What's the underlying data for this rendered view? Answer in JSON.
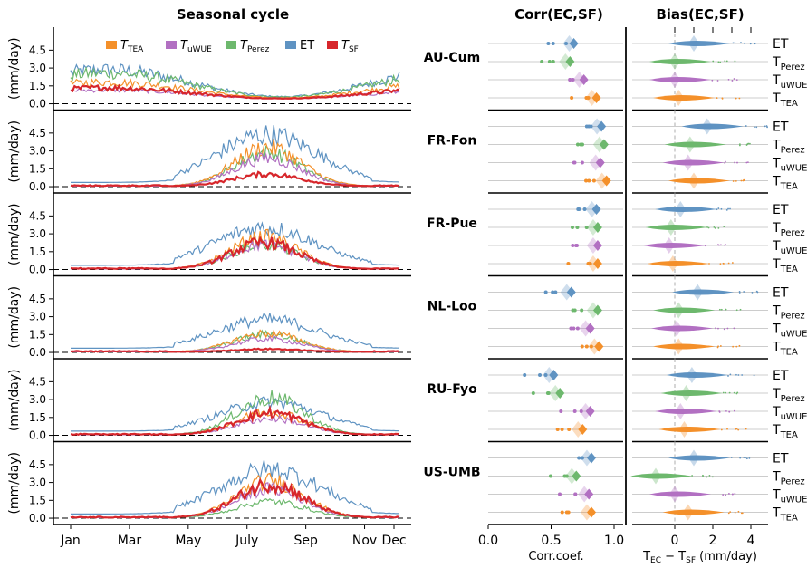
{
  "titles": {
    "seasonal": "Seasonal cycle",
    "corr": "Corr(EC,SF)",
    "bias": "Bias(EC,SF)"
  },
  "legend": [
    {
      "label": "T",
      "sub": "TEA",
      "color": "#f4902a"
    },
    {
      "label": "T",
      "sub": "uWUE",
      "color": "#b270c2"
    },
    {
      "label": "T",
      "sub": "Perez",
      "color": "#6db86d"
    },
    {
      "label": "ET",
      "sub": "",
      "color": "#5f93c2"
    },
    {
      "label": "T",
      "sub": "SF",
      "color": "#d7262b"
    }
  ],
  "ylabel": "(mm/day)",
  "yticks": [
    "0.0",
    "1.5",
    "3.0",
    "4.5"
  ],
  "months": [
    "Jan",
    "Mar",
    "May",
    "July",
    "Sep",
    "Nov",
    "Dec"
  ],
  "corr_xticks": [
    "0.0",
    "0.5",
    "1.0"
  ],
  "bias_xticks": [
    "0",
    "2",
    "4"
  ],
  "corr_xlabel": "Corr.coef.",
  "bias_xlabel_main": "T",
  "bias_xlabel_sub1": "EC",
  "bias_xlabel_mid": " − T",
  "bias_xlabel_sub2": "SF",
  "bias_xlabel_unit": " (mm/day)",
  "row_labels": [
    {
      "main": "ET",
      "sub": ""
    },
    {
      "main": "T",
      "sub": "Perez"
    },
    {
      "main": "T",
      "sub": "uWUE"
    },
    {
      "main": "T",
      "sub": "TEA"
    }
  ],
  "chart_data": {
    "type": "line",
    "title": "Seasonal cycle",
    "ylabel": "(mm/day)",
    "ylim": [
      -0.3,
      6.2
    ],
    "x_range": [
      "Jan",
      "Dec"
    ],
    "series_names": [
      "T_TEA",
      "T_uWUE",
      "T_Perez",
      "ET",
      "T_SF"
    ],
    "sites": [
      {
        "name": "AU-Cum",
        "peak_month": 2.0,
        "corr": {
          "ET": 0.68,
          "T_Perez": 0.65,
          "T_uWUE": 0.76,
          "T_TEA": 0.86
        },
        "bias": {
          "ET": 1.0,
          "T_Perez": 0.0,
          "T_uWUE": 0.0,
          "T_TEA": 0.2
        },
        "peaks": {
          "ET": 3.0,
          "T_TEA": 1.9,
          "T_uWUE": 1.2,
          "T_Perez": 2.7,
          "T_SF": 1.4
        }
      },
      {
        "name": "FR-Fon",
        "peak_month": 6.7,
        "corr": {
          "ET": 0.9,
          "T_Perez": 0.92,
          "T_uWUE": 0.89,
          "T_TEA": 0.94
        },
        "bias": {
          "ET": 1.7,
          "T_Perez": 0.8,
          "T_uWUE": 0.7,
          "T_TEA": 1.0
        },
        "peaks": {
          "ET": 4.6,
          "T_TEA": 3.5,
          "T_uWUE": 2.5,
          "T_Perez": 3.0,
          "T_SF": 1.1
        }
      },
      {
        "name": "FR-Pue",
        "peak_month": 6.6,
        "corr": {
          "ET": 0.86,
          "T_Perez": 0.87,
          "T_uWUE": 0.87,
          "T_TEA": 0.87
        },
        "bias": {
          "ET": 0.3,
          "T_Perez": -0.2,
          "T_uWUE": -0.3,
          "T_TEA": -0.1
        },
        "peaks": {
          "ET": 3.7,
          "T_TEA": 2.9,
          "T_uWUE": 2.2,
          "T_Perez": 2.2,
          "T_SF": 2.4
        }
      },
      {
        "name": "NL-Loo",
        "peak_month": 6.7,
        "corr": {
          "ET": 0.66,
          "T_Perez": 0.87,
          "T_uWUE": 0.81,
          "T_TEA": 0.88
        },
        "bias": {
          "ET": 1.2,
          "T_Perez": 0.2,
          "T_uWUE": 0.1,
          "T_TEA": 0.2
        },
        "peaks": {
          "ET": 2.9,
          "T_TEA": 1.7,
          "T_uWUE": 1.2,
          "T_Perez": 1.6,
          "T_SF": 0.3
        }
      },
      {
        "name": "RU-Fyo",
        "peak_month": 6.8,
        "corr": {
          "ET": 0.52,
          "T_Perez": 0.57,
          "T_uWUE": 0.81,
          "T_TEA": 0.75
        },
        "bias": {
          "ET": 0.9,
          "T_Perez": 0.6,
          "T_uWUE": 0.3,
          "T_TEA": 0.5
        },
        "peaks": {
          "ET": 2.9,
          "T_TEA": 2.1,
          "T_uWUE": 1.5,
          "T_Perez": 3.3,
          "T_SF": 2.0
        }
      },
      {
        "name": "US-UMB",
        "peak_month": 6.8,
        "corr": {
          "ET": 0.82,
          "T_Perez": 0.7,
          "T_uWUE": 0.8,
          "T_TEA": 0.82
        },
        "bias": {
          "ET": 1.0,
          "T_Perez": -1.0,
          "T_uWUE": 0.0,
          "T_TEA": 0.7
        },
        "peaks": {
          "ET": 4.3,
          "T_TEA": 3.3,
          "T_uWUE": 2.6,
          "T_Perez": 1.5,
          "T_SF": 3.0
        }
      }
    ]
  }
}
